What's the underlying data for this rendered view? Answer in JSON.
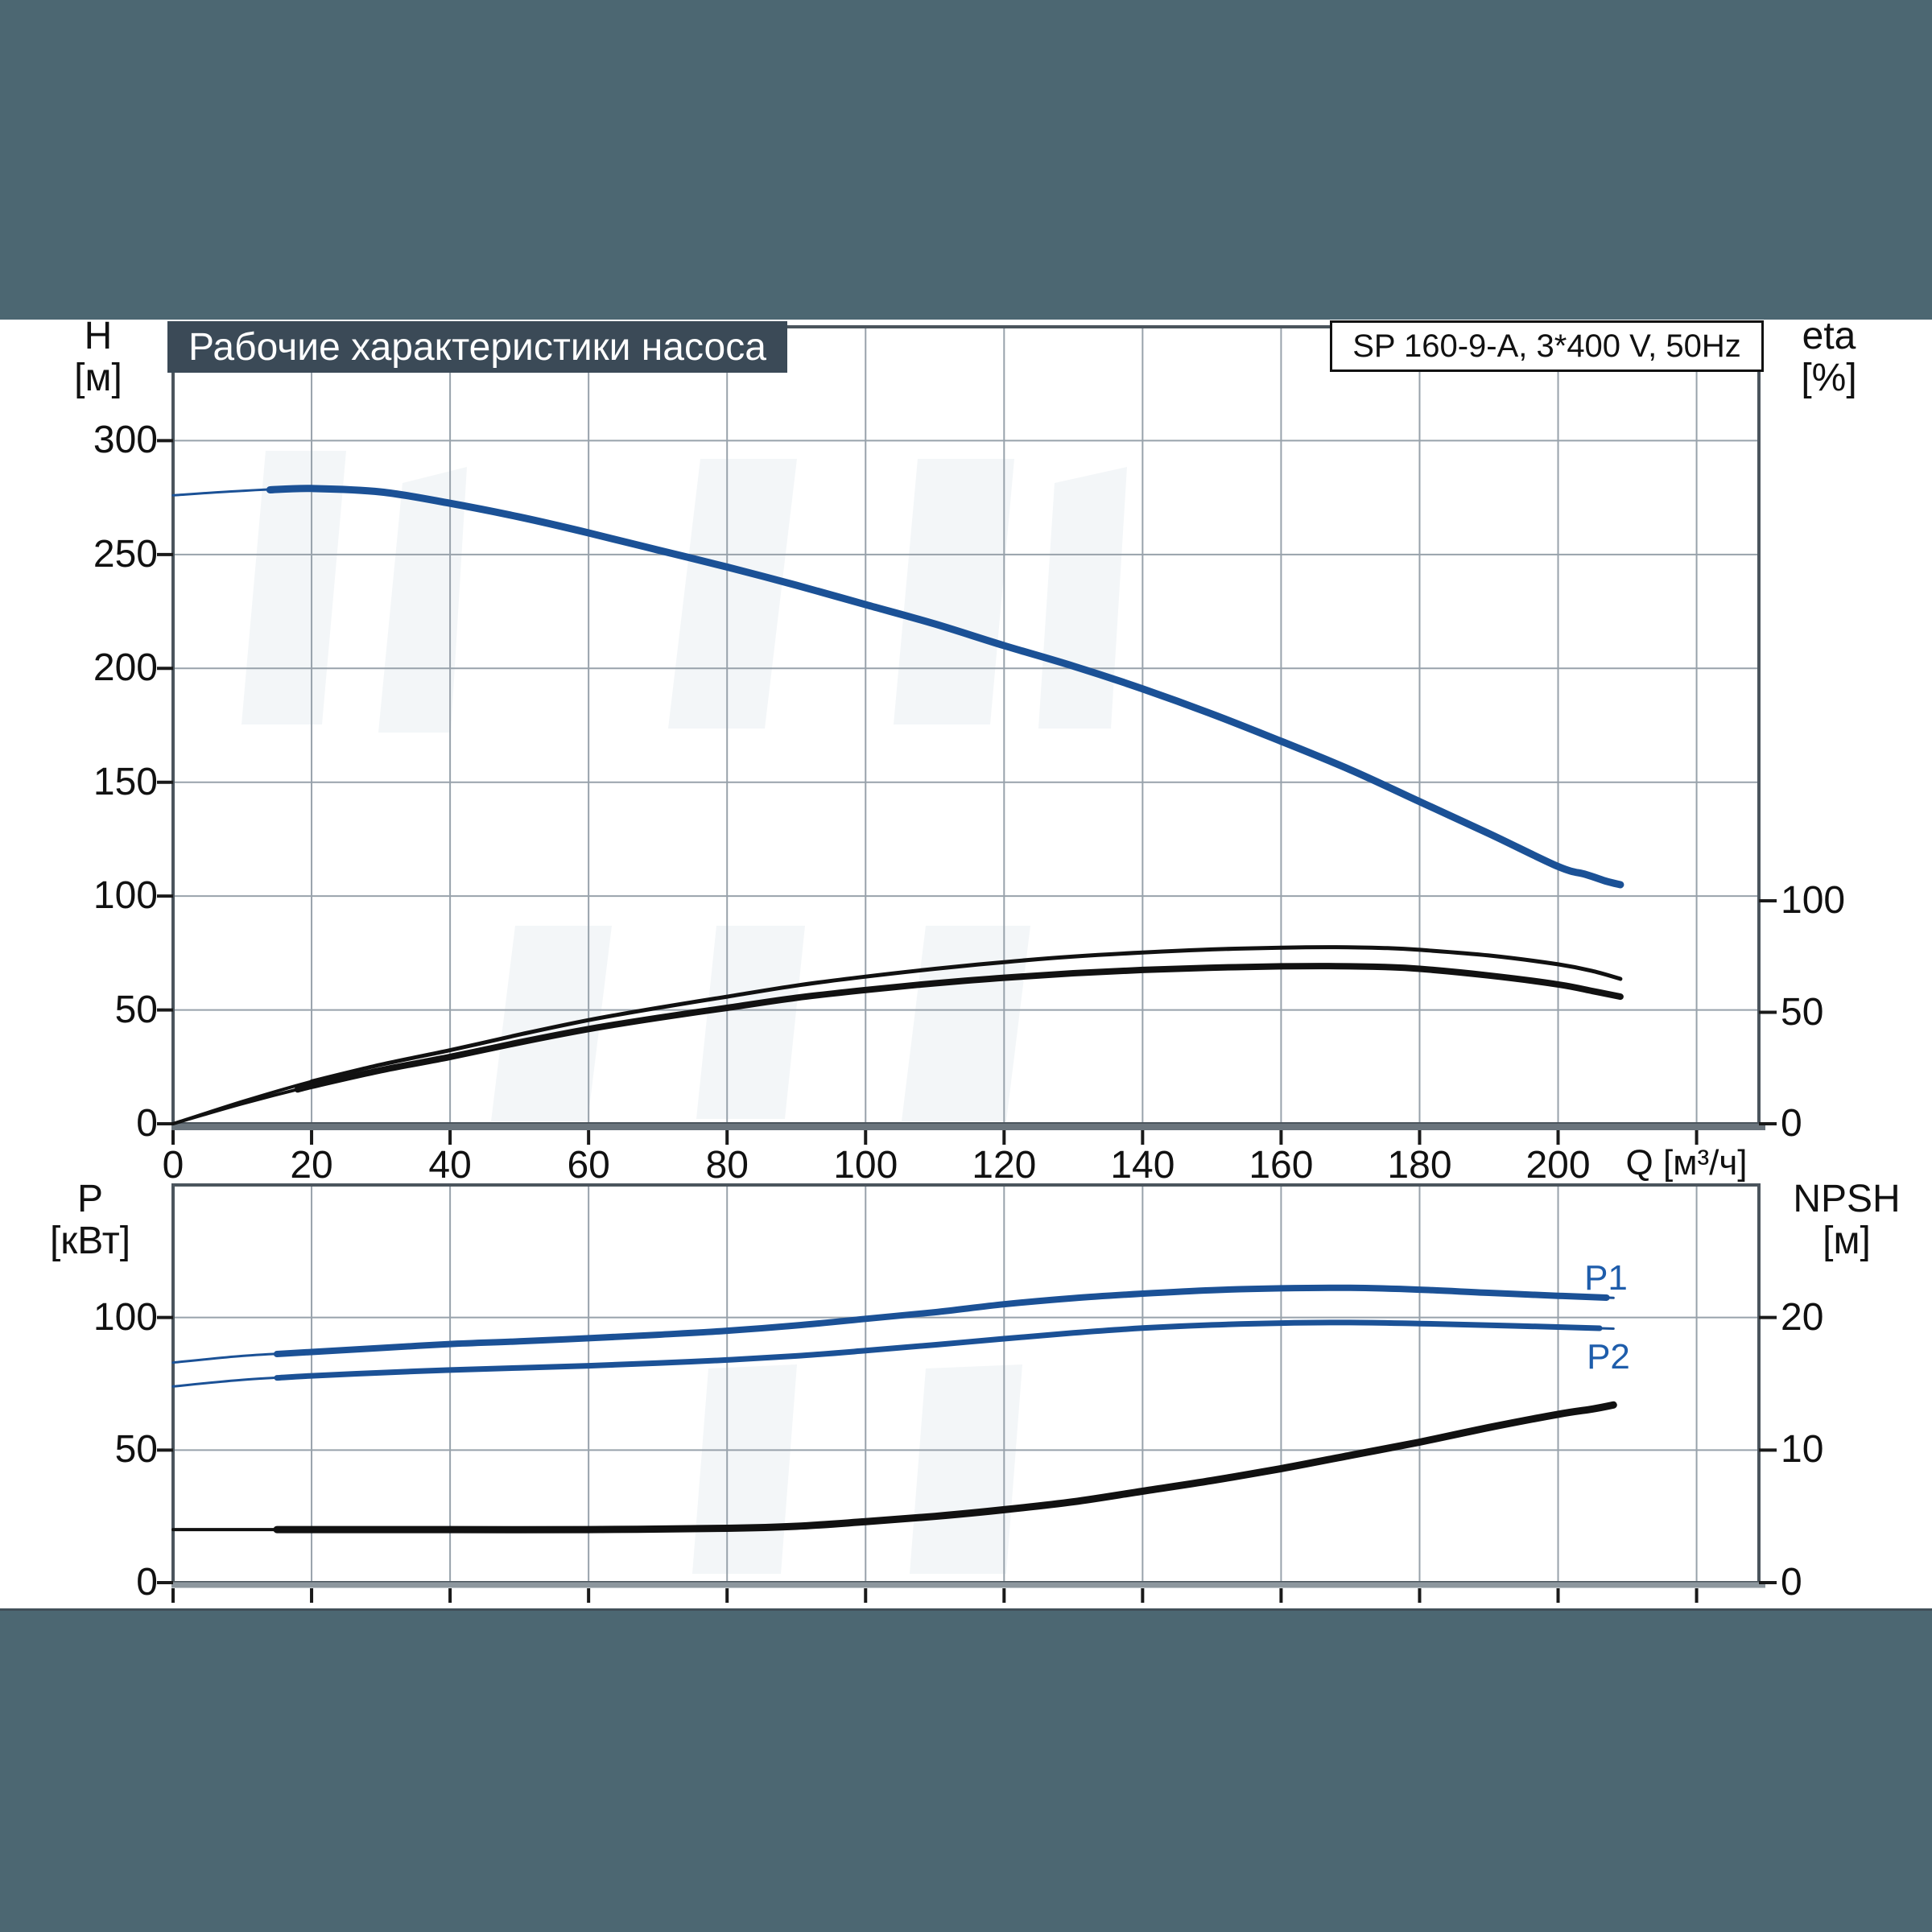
{
  "page": {
    "title": "Рабочие характеристики насоса",
    "model": "SP 160-9-A, 3*400 V, 50Hz",
    "background_color": "#4c6772",
    "title_bar_color": "#3b4a57",
    "curve_blue": "#1b5196",
    "curve_black": "#111111",
    "label_blue": "#1e5dab"
  },
  "top_chart": {
    "y_left": {
      "label": "H",
      "unit": "[м]",
      "ticks": [
        300,
        250,
        200,
        150,
        100,
        50,
        0
      ]
    },
    "y_right": {
      "label": "eta",
      "unit": "[%]",
      "ticks": [
        100,
        50,
        0
      ]
    },
    "x": {
      "label": "Q [м³/ч]",
      "ticks": [
        0,
        20,
        40,
        60,
        80,
        100,
        120,
        140,
        160,
        180,
        200
      ]
    }
  },
  "bottom_chart": {
    "y_left": {
      "label": "P",
      "unit": "[кВт]",
      "ticks": [
        100,
        50,
        0
      ]
    },
    "y_right": {
      "label": "NPSH",
      "unit": "[м]",
      "ticks": [
        20,
        10,
        0
      ]
    },
    "series_labels": {
      "p1": "P1",
      "p2": "P2"
    }
  },
  "chart_data": [
    {
      "type": "line",
      "title": "Рабочие характеристики насоса",
      "subtitle": "SP 160-9-A, 3*400 V, 50Hz",
      "xlabel": "Q [м³/ч]",
      "x_range": [
        0,
        229
      ],
      "x_gridlines": [
        20,
        40,
        60,
        80,
        100,
        120,
        140,
        160,
        180,
        200,
        220
      ],
      "x_tick_labels": [
        0,
        20,
        40,
        60,
        80,
        100,
        120,
        140,
        160,
        180,
        200
      ],
      "y_left": {
        "label": "H [м]",
        "range": [
          0,
          350
        ],
        "ticks": [
          0,
          50,
          100,
          150,
          200,
          250,
          300
        ],
        "gridlines": [
          50,
          100,
          150,
          200,
          250,
          300
        ]
      },
      "y_right": {
        "label": "eta [%]",
        "range": [
          0,
          100
        ],
        "ticks": [
          0,
          50,
          100
        ]
      },
      "grid": true,
      "series": [
        {
          "name": "head",
          "axis": "H",
          "color": "#1b5196",
          "thin": 3,
          "thick": 9,
          "thick_range": [
            14,
            209
          ],
          "points": [
            [
              0,
              276
            ],
            [
              10,
              278
            ],
            [
              20,
              279
            ],
            [
              30,
              277.5
            ],
            [
              40,
              272.5
            ],
            [
              50,
              266.5
            ],
            [
              60,
              259.5
            ],
            [
              70,
              252
            ],
            [
              80,
              244.5
            ],
            [
              90,
              236.5
            ],
            [
              100,
              228
            ],
            [
              110,
              219.5
            ],
            [
              120,
              210
            ],
            [
              130,
              201
            ],
            [
              140,
              191
            ],
            [
              150,
              180
            ],
            [
              160,
              168
            ],
            [
              170,
              155.5
            ],
            [
              180,
              141.5
            ],
            [
              190,
              127.5
            ],
            [
              200,
              113
            ],
            [
              204,
              109.5
            ],
            [
              207,
              106.5
            ],
            [
              209,
              105
            ]
          ]
        },
        {
          "name": "eta-upper",
          "axis": "eta",
          "color": "#111111",
          "thin": 4,
          "thick": 5,
          "thick_range": [
            20,
            209
          ],
          "points": [
            [
              0,
              0
            ],
            [
              10,
              10
            ],
            [
              20,
              19
            ],
            [
              30,
              26.5
            ],
            [
              40,
              33
            ],
            [
              50,
              40
            ],
            [
              60,
              46.5
            ],
            [
              70,
              52
            ],
            [
              80,
              57
            ],
            [
              90,
              62
            ],
            [
              100,
              66
            ],
            [
              110,
              69.5
            ],
            [
              120,
              72.5
            ],
            [
              130,
              75
            ],
            [
              140,
              76.8
            ],
            [
              150,
              78.2
            ],
            [
              160,
              79
            ],
            [
              168,
              79.2
            ],
            [
              175,
              78.8
            ],
            [
              180,
              78
            ],
            [
              190,
              75.5
            ],
            [
              200,
              71.5
            ],
            [
              205,
              68.5
            ],
            [
              209,
              65
            ]
          ]
        },
        {
          "name": "eta-lower",
          "axis": "eta",
          "color": "#111111",
          "thin": 4,
          "thick": 8,
          "thick_range": [
            18,
            209
          ],
          "points": [
            [
              0,
              0
            ],
            [
              10,
              9
            ],
            [
              20,
              17
            ],
            [
              30,
              24
            ],
            [
              40,
              30
            ],
            [
              50,
              36.5
            ],
            [
              60,
              42.5
            ],
            [
              70,
              47.5
            ],
            [
              80,
              52
            ],
            [
              90,
              56.5
            ],
            [
              100,
              60
            ],
            [
              110,
              63
            ],
            [
              120,
              65.5
            ],
            [
              130,
              67.5
            ],
            [
              140,
              69
            ],
            [
              150,
              70
            ],
            [
              160,
              70.6
            ],
            [
              168,
              70.7
            ],
            [
              175,
              70.3
            ],
            [
              180,
              69.5
            ],
            [
              190,
              66.5
            ],
            [
              200,
              62.5
            ],
            [
              205,
              59.5
            ],
            [
              209,
              57
            ]
          ]
        }
      ]
    },
    {
      "type": "line",
      "xlabel": "Q [м³/ч]",
      "x_range": [
        0,
        229
      ],
      "x_gridlines": [
        20,
        40,
        60,
        80,
        100,
        120,
        140,
        160,
        180,
        200,
        220
      ],
      "y_left": {
        "label": "P [кВт]",
        "range": [
          0,
          150
        ],
        "ticks": [
          0,
          50,
          100
        ],
        "gridlines": [
          50,
          100
        ]
      },
      "y_right": {
        "label": "NPSH [м]",
        "range": [
          0,
          30
        ],
        "ticks": [
          0,
          10,
          20
        ]
      },
      "grid": true,
      "legend": [
        "P1",
        "P2"
      ],
      "series": [
        {
          "name": "P1",
          "axis": "P",
          "color": "#1b5196",
          "thin": 3,
          "thick": 8,
          "thick_range": [
            15,
            207
          ],
          "points": [
            [
              0,
              83
            ],
            [
              10,
              85.5
            ],
            [
              20,
              87
            ],
            [
              30,
              88.5
            ],
            [
              40,
              90
            ],
            [
              50,
              91
            ],
            [
              60,
              92.2
            ],
            [
              70,
              93.5
            ],
            [
              80,
              95
            ],
            [
              90,
              97
            ],
            [
              100,
              99.5
            ],
            [
              110,
              102
            ],
            [
              120,
              105
            ],
            [
              130,
              107.3
            ],
            [
              140,
              109
            ],
            [
              150,
              110.3
            ],
            [
              160,
              111
            ],
            [
              170,
              111.2
            ],
            [
              180,
              110.5
            ],
            [
              190,
              109.3
            ],
            [
              200,
              108.2
            ],
            [
              208,
              107.4
            ]
          ]
        },
        {
          "name": "P2",
          "axis": "P",
          "color": "#1b5196",
          "thin": 3,
          "thick": 7,
          "thick_range": [
            15,
            206
          ],
          "points": [
            [
              0,
              74
            ],
            [
              10,
              76.5
            ],
            [
              20,
              78
            ],
            [
              30,
              79.2
            ],
            [
              40,
              80.2
            ],
            [
              50,
              81
            ],
            [
              60,
              81.8
            ],
            [
              70,
              82.8
            ],
            [
              80,
              84
            ],
            [
              90,
              85.5
            ],
            [
              100,
              87.5
            ],
            [
              110,
              89.7
            ],
            [
              120,
              92
            ],
            [
              130,
              94.2
            ],
            [
              140,
              96
            ],
            [
              150,
              97.2
            ],
            [
              160,
              97.9
            ],
            [
              170,
              98.1
            ],
            [
              180,
              97.7
            ],
            [
              190,
              97.1
            ],
            [
              200,
              96.4
            ],
            [
              208,
              95.8
            ]
          ]
        },
        {
          "name": "NPSH",
          "axis": "N",
          "color": "#111111",
          "thin": 4,
          "thick": 9,
          "thick_range": [
            15,
            208
          ],
          "points": [
            [
              0,
              4
            ],
            [
              20,
              4
            ],
            [
              40,
              4
            ],
            [
              60,
              4
            ],
            [
              80,
              4.1
            ],
            [
              90,
              4.25
            ],
            [
              100,
              4.6
            ],
            [
              110,
              5
            ],
            [
              120,
              5.5
            ],
            [
              130,
              6.1
            ],
            [
              140,
              6.9
            ],
            [
              150,
              7.7
            ],
            [
              160,
              8.6
            ],
            [
              170,
              9.6
            ],
            [
              180,
              10.6
            ],
            [
              190,
              11.7
            ],
            [
              200,
              12.7
            ],
            [
              205,
              13.1
            ],
            [
              208,
              13.4
            ]
          ]
        }
      ]
    }
  ]
}
